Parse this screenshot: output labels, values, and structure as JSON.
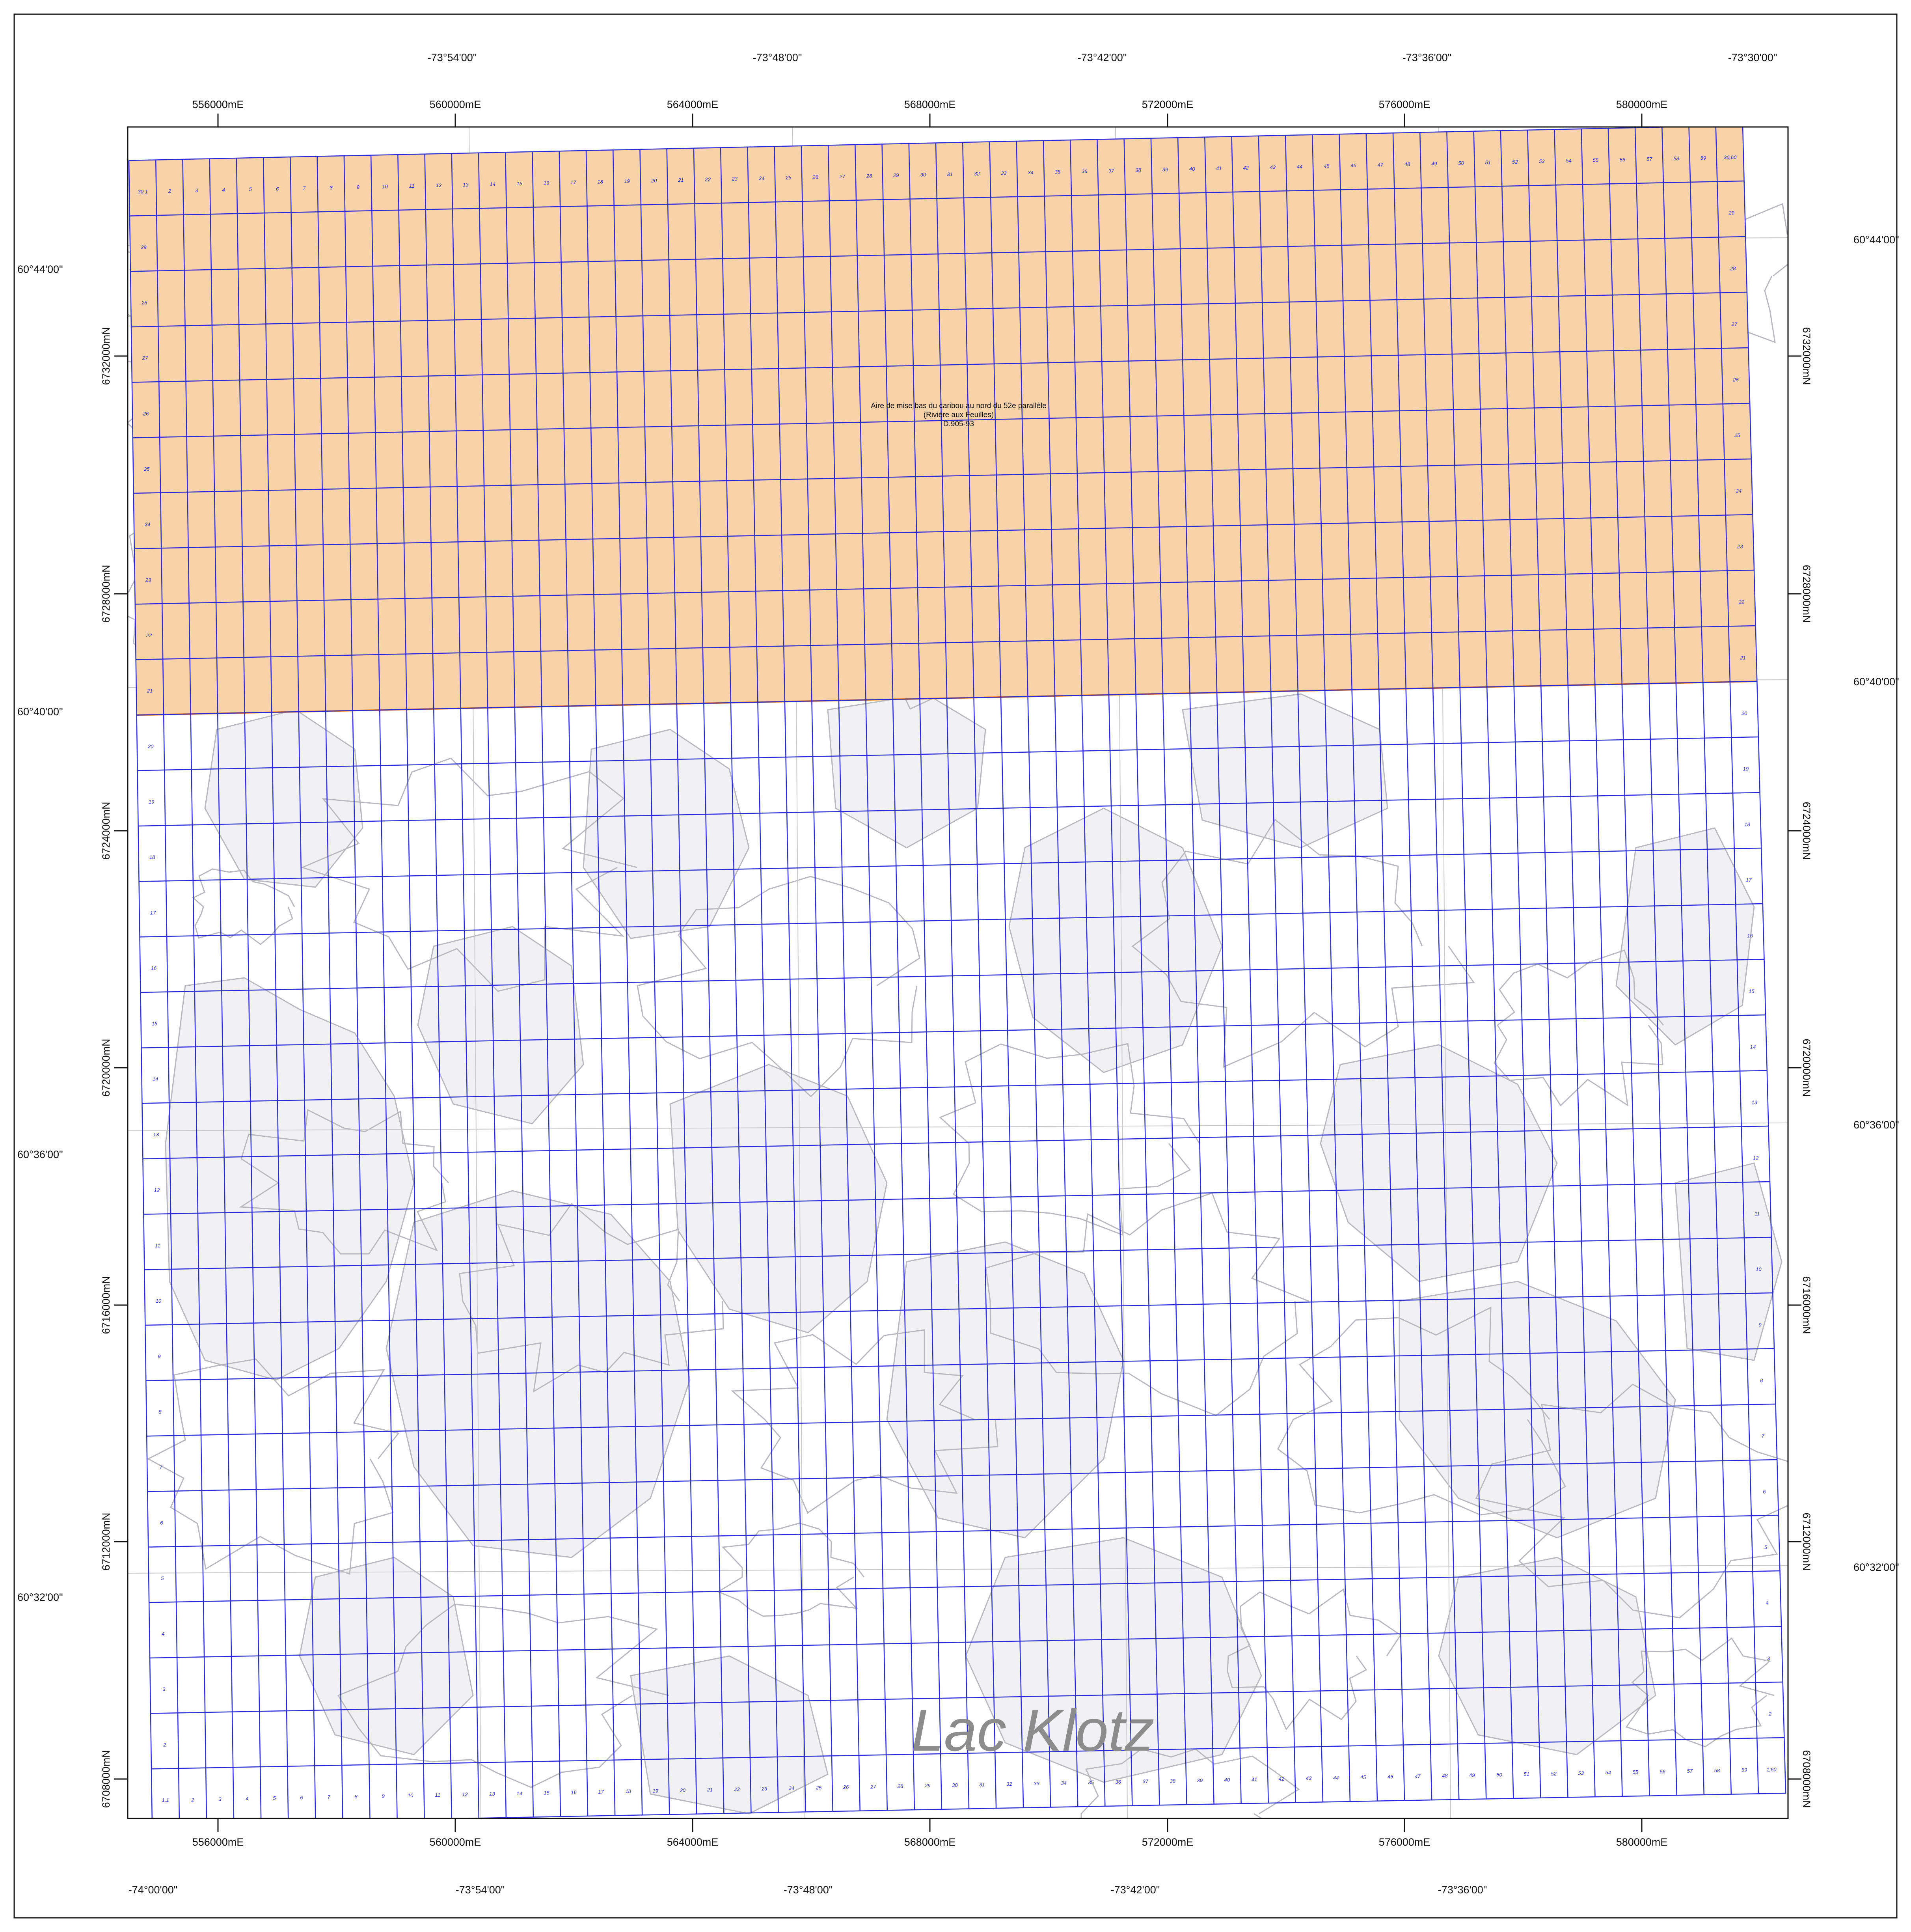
{
  "map": {
    "colors": {
      "background": "#ffffff",
      "frame": "#111111",
      "claim_grid": "#2a2ad6",
      "protected_zone_fill": "#f8d2a8",
      "protected_zone_edge": "#f08a1a",
      "terrain_fill": "#f1f1f3",
      "contour": "#b8b8bf",
      "graticule": "#c8c8c8",
      "place_label": "#8c8c8c"
    },
    "top_longitudes": [
      "-73°54'00\"",
      "-73°48'00\"",
      "-73°42'00\"",
      "-73°36'00\"",
      "-73°30'00\""
    ],
    "bottom_longitudes": [
      "-74°00'00\"",
      "-73°54'00\"",
      "-73°48'00\"",
      "-73°42'00\"",
      "-73°36'00\""
    ],
    "left_latitudes": [
      "60°44'00\"",
      "60°40'00\"",
      "60°36'00\"",
      "60°32'00\""
    ],
    "right_latitudes": [
      "60°44'00\"",
      "60°40'00\"",
      "60°36'00\"",
      "60°32'00\""
    ],
    "eastings": [
      "556000mE",
      "560000mE",
      "564000mE",
      "568000mE",
      "572000mE",
      "576000mE",
      "580000mE"
    ],
    "northings": [
      "6732000mN",
      "6728000mN",
      "6724000mN",
      "6720000mN",
      "6716000mN",
      "6712000mN",
      "6708000mN"
    ],
    "protected_area": {
      "line1": "Aire de mise bas du caribou au nord du 52e parallèle",
      "line2": "(Rivière aux Feuilles)",
      "line3": "D.905-93"
    },
    "place_name": "Lac Klotz",
    "grid": {
      "columns": 60,
      "rows": 30,
      "corner_top_left": "30,1",
      "corner_top_right": "30,60",
      "corner_bottom_left": "1,1",
      "corner_bottom_right": "1,60"
    }
  }
}
